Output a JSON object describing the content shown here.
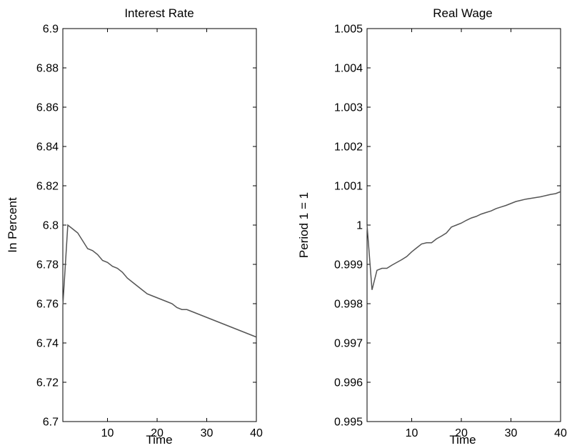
{
  "chart_data": [
    {
      "type": "line",
      "title": "Interest Rate",
      "xlabel": "Time",
      "ylabel": "In Percent",
      "xlim": [
        1,
        40
      ],
      "ylim": [
        6.7,
        6.9
      ],
      "xticks": [
        10,
        20,
        30,
        40
      ],
      "xtick_labels": [
        "10",
        "20",
        "30",
        "40"
      ],
      "yticks": [
        6.7,
        6.72,
        6.74,
        6.76,
        6.78,
        6.8,
        6.82,
        6.84,
        6.86,
        6.88,
        6.9
      ],
      "ytick_labels": [
        "6.7",
        "6.72",
        "6.74",
        "6.76",
        "6.78",
        "6.8",
        "6.82",
        "6.84",
        "6.86",
        "6.88",
        "6.9"
      ],
      "grid": false,
      "line_color": "#555555",
      "series": [
        {
          "x": [
            1,
            2,
            3,
            4,
            5,
            6,
            7,
            8,
            9,
            10,
            11,
            12,
            13,
            14,
            15,
            16,
            17,
            18,
            19,
            20,
            21,
            22,
            23,
            24,
            25,
            26,
            27,
            28,
            29,
            30,
            31,
            32,
            33,
            34,
            35,
            36,
            37,
            38,
            39,
            40
          ],
          "values": [
            6.759,
            6.8,
            6.798,
            6.796,
            6.792,
            6.788,
            6.787,
            6.785,
            6.782,
            6.781,
            6.779,
            6.778,
            6.776,
            6.773,
            6.771,
            6.769,
            6.767,
            6.765,
            6.764,
            6.763,
            6.762,
            6.761,
            6.76,
            6.758,
            6.757,
            6.757,
            6.756,
            6.755,
            6.754,
            6.753,
            6.752,
            6.751,
            6.75,
            6.749,
            6.748,
            6.747,
            6.746,
            6.745,
            6.744,
            6.743
          ]
        }
      ]
    },
    {
      "type": "line",
      "title": "Real Wage",
      "xlabel": "Time",
      "ylabel": "Period 1 = 1",
      "xlim": [
        1,
        40
      ],
      "ylim": [
        0.995,
        1.005
      ],
      "xticks": [
        10,
        20,
        30,
        40
      ],
      "xtick_labels": [
        "10",
        "20",
        "30",
        "40"
      ],
      "yticks": [
        0.995,
        0.996,
        0.997,
        0.998,
        0.999,
        1,
        1.001,
        1.002,
        1.003,
        1.004,
        1.005
      ],
      "ytick_labels": [
        "0.995",
        "0.996",
        "0.997",
        "0.998",
        "0.999",
        "1",
        "1.001",
        "1.002",
        "1.003",
        "1.004",
        "1.005"
      ],
      "grid": false,
      "line_color": "#555555",
      "series": [
        {
          "x": [
            1,
            2,
            3,
            4,
            5,
            6,
            7,
            8,
            9,
            10,
            11,
            12,
            13,
            14,
            15,
            16,
            17,
            18,
            19,
            20,
            21,
            22,
            23,
            24,
            25,
            26,
            27,
            28,
            29,
            30,
            31,
            32,
            33,
            34,
            35,
            36,
            37,
            38,
            39,
            40
          ],
          "values": [
            1.0,
            0.99835,
            0.99885,
            0.9989,
            0.9989,
            0.99898,
            0.99905,
            0.99912,
            0.9992,
            0.99932,
            0.99942,
            0.99952,
            0.99955,
            0.99955,
            0.99965,
            0.99972,
            0.9998,
            0.99995,
            1.0,
            1.00005,
            1.00012,
            1.00018,
            1.00022,
            1.00028,
            1.00032,
            1.00036,
            1.00042,
            1.00046,
            1.0005,
            1.00055,
            1.0006,
            1.00063,
            1.00066,
            1.00068,
            1.0007,
            1.00072,
            1.00075,
            1.00078,
            1.0008,
            1.00085
          ]
        }
      ]
    }
  ]
}
